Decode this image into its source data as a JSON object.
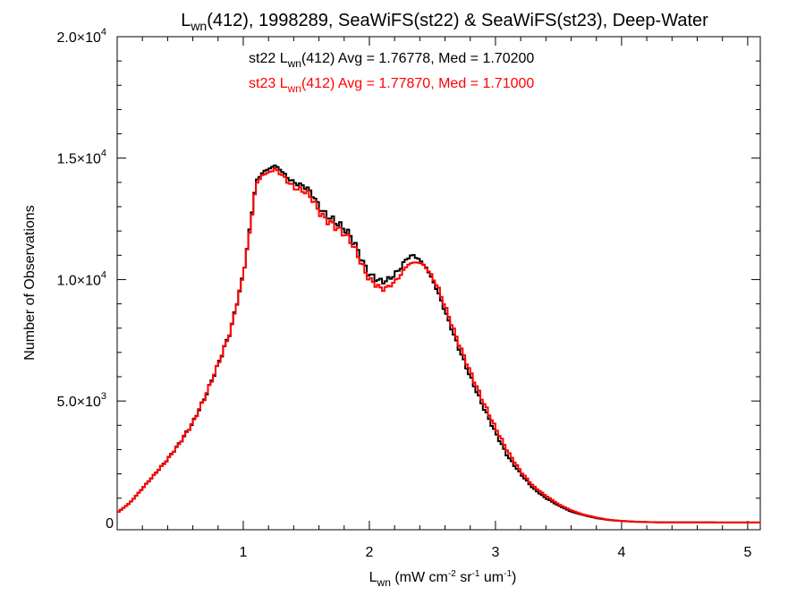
{
  "chart_data": {
    "type": "line",
    "step": true,
    "title": {
      "var_main": "L",
      "var_sub": "wn",
      "rest": "(412), 1998289, SeaWiFS(st22) & SeaWiFS(st23), Deep-Water"
    },
    "xlabel": {
      "main": "L",
      "sub": "wn",
      "units_a": " (mW cm",
      "sup1": "-2",
      "units_b": " sr",
      "sup2": "-1",
      "units_c": " um",
      "sup3": "-1",
      "units_d": ")"
    },
    "ylabel": "Number of Observations",
    "xlim": [
      0.0,
      5.1
    ],
    "ylim": [
      -300,
      20000
    ],
    "x_ticks": [
      {
        "value": 1,
        "label": "1"
      },
      {
        "value": 2,
        "label": "2"
      },
      {
        "value": 3,
        "label": "3"
      },
      {
        "value": 4,
        "label": "4"
      },
      {
        "value": 5,
        "label": "5"
      }
    ],
    "y_ticks": [
      {
        "value": 0,
        "mant": "0",
        "exp": ""
      },
      {
        "value": 5000,
        "mant": "5.0×10",
        "exp": "3"
      },
      {
        "value": 10000,
        "mant": "1.0×10",
        "exp": "4"
      },
      {
        "value": 15000,
        "mant": "1.5×10",
        "exp": "4"
      },
      {
        "value": 20000,
        "mant": "2.0×10",
        "exp": "4"
      }
    ],
    "annotations": [
      {
        "pre": "st22 L",
        "sub": "wn",
        "post": "(412) Avg = 1.76778, Med = 1.70200",
        "color": "#000000"
      },
      {
        "pre": "st23 L",
        "sub": "wn",
        "post": "(412) Avg = 1.77870, Med = 1.71000",
        "color": "#ff0000"
      }
    ],
    "series": [
      {
        "color": "#000000",
        "x": [
          0.0,
          0.1,
          0.2,
          0.3,
          0.4,
          0.5,
          0.6,
          0.7,
          0.8,
          0.9,
          1.0,
          1.05,
          1.1,
          1.15,
          1.2,
          1.25,
          1.3,
          1.35,
          1.4,
          1.45,
          1.5,
          1.55,
          1.6,
          1.65,
          1.7,
          1.75,
          1.8,
          1.85,
          1.9,
          1.95,
          2.0,
          2.05,
          2.1,
          2.15,
          2.2,
          2.25,
          2.3,
          2.35,
          2.4,
          2.45,
          2.5,
          2.55,
          2.6,
          2.7,
          2.8,
          2.9,
          3.0,
          3.1,
          3.2,
          3.3,
          3.4,
          3.5,
          3.6,
          3.7,
          3.8,
          3.9,
          4.0,
          4.1,
          4.2,
          4.3,
          4.4,
          4.6,
          4.8,
          5.1
        ],
        "y": [
          400,
          800,
          1400,
          2000,
          2600,
          3300,
          4100,
          5200,
          6500,
          7900,
          10200,
          12000,
          14000,
          14400,
          14550,
          14700,
          14500,
          14200,
          14000,
          13900,
          13800,
          13500,
          13000,
          12700,
          12500,
          12300,
          12100,
          11800,
          11300,
          10700,
          10200,
          10050,
          9900,
          10000,
          10200,
          10500,
          10900,
          11000,
          10800,
          10500,
          10000,
          9400,
          8700,
          7300,
          6000,
          4800,
          3700,
          2700,
          2000,
          1400,
          1000,
          700,
          450,
          300,
          180,
          100,
          60,
          30,
          15,
          5,
          2,
          1,
          0,
          0
        ]
      },
      {
        "color": "#ff0000",
        "x": [
          0.0,
          0.1,
          0.2,
          0.3,
          0.4,
          0.5,
          0.6,
          0.7,
          0.8,
          0.9,
          1.0,
          1.05,
          1.1,
          1.15,
          1.2,
          1.25,
          1.3,
          1.35,
          1.4,
          1.45,
          1.5,
          1.55,
          1.6,
          1.65,
          1.7,
          1.75,
          1.8,
          1.85,
          1.9,
          1.95,
          2.0,
          2.05,
          2.1,
          2.15,
          2.2,
          2.25,
          2.3,
          2.35,
          2.4,
          2.45,
          2.5,
          2.55,
          2.6,
          2.7,
          2.8,
          2.9,
          3.0,
          3.1,
          3.2,
          3.3,
          3.4,
          3.5,
          3.6,
          3.7,
          3.8,
          3.9,
          4.0,
          4.1,
          4.2,
          4.3,
          4.4,
          4.6,
          4.8,
          5.1
        ],
        "y": [
          400,
          800,
          1400,
          2000,
          2600,
          3300,
          4100,
          5200,
          6500,
          7900,
          10200,
          11900,
          13900,
          14300,
          14400,
          14550,
          14350,
          14050,
          13800,
          13700,
          13600,
          13300,
          12800,
          12500,
          12300,
          12100,
          11900,
          11600,
          11100,
          10500,
          10000,
          9800,
          9600,
          9700,
          9900,
          10200,
          10600,
          10700,
          10700,
          10500,
          10100,
          9600,
          8900,
          7500,
          6200,
          5000,
          3900,
          2900,
          2100,
          1500,
          1100,
          750,
          500,
          320,
          200,
          110,
          65,
          35,
          18,
          6,
          3,
          1,
          0,
          0
        ]
      }
    ]
  }
}
